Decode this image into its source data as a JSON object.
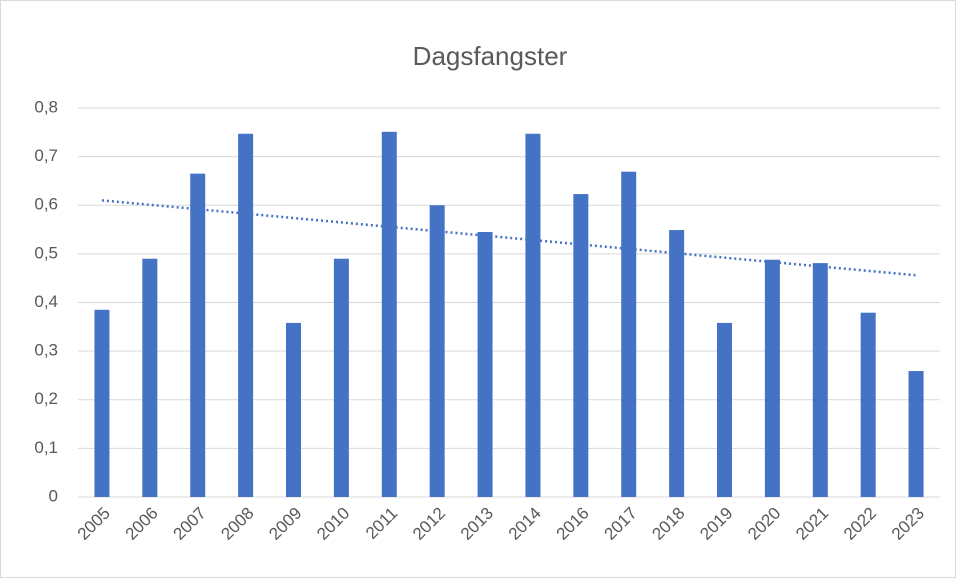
{
  "chart_data": {
    "type": "bar",
    "title": "Dagsfangster",
    "categories": [
      "2005",
      "2006",
      "2007",
      "2008",
      "2009",
      "2010",
      "2011",
      "2012",
      "2013",
      "2014",
      "2016",
      "2017",
      "2018",
      "2019",
      "2020",
      "2021",
      "2022",
      "2023"
    ],
    "values": [
      0.385,
      0.49,
      0.665,
      0.747,
      0.358,
      0.49,
      0.751,
      0.6,
      0.545,
      0.747,
      0.623,
      0.669,
      0.549,
      0.358,
      0.488,
      0.481,
      0.379,
      0.259
    ],
    "color": "#4472c4",
    "trendline": [
      0.61,
      0.456
    ],
    "ylim": [
      0,
      0.8
    ],
    "yticks": [
      0,
      {
        "value": 0.1,
        "label": "0,1"
      },
      {
        "value": 0.2,
        "label": "0,2"
      },
      {
        "value": 0.3,
        "label": "0,3"
      },
      {
        "value": 0.4,
        "label": "0,4"
      },
      {
        "value": 0.5,
        "label": "0,5"
      },
      {
        "value": 0.6,
        "label": "0,6"
      },
      {
        "value": 0.7,
        "label": "0,7"
      },
      {
        "value": 0.8,
        "label": "0,8"
      }
    ],
    "grid": true
  }
}
